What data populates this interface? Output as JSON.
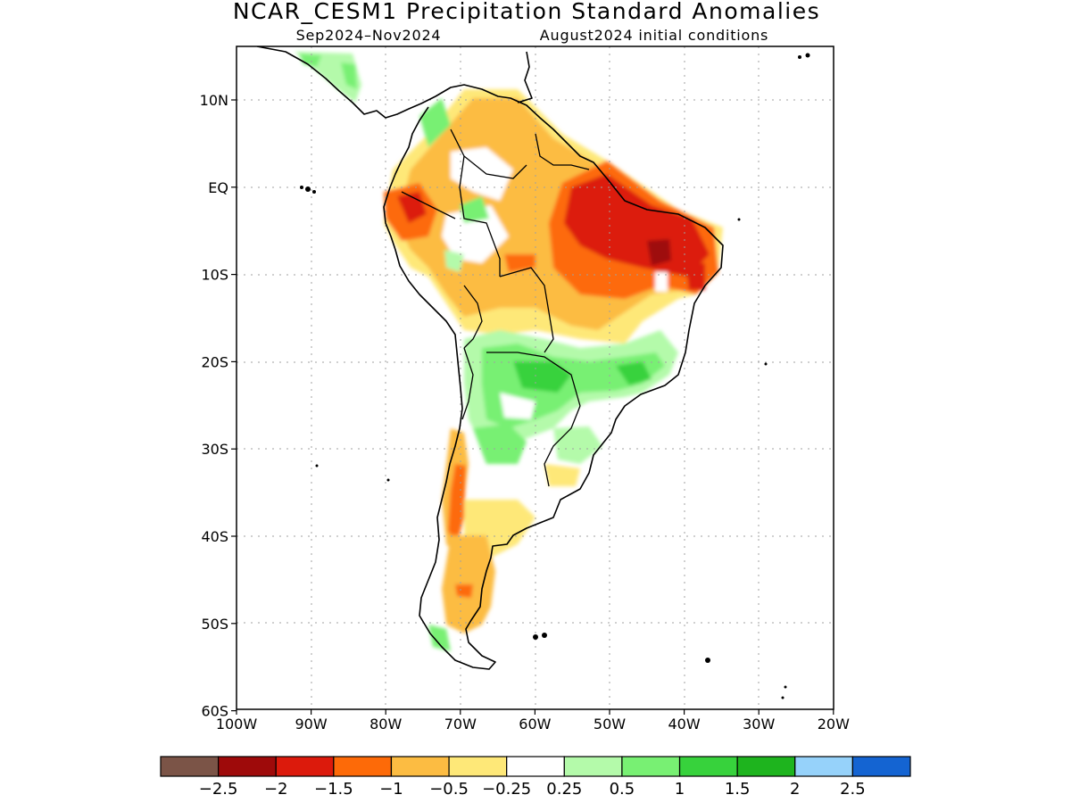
{
  "title": "NCAR_CESM1 Precipitation Standard Anomalies",
  "subtitle_left": "Sep2024–Nov2024",
  "subtitle_right": "August2024 initial conditions",
  "lat_labels": [
    "10N",
    "EQ",
    "10S",
    "20S",
    "30S",
    "40S",
    "50S",
    "60S"
  ],
  "lon_labels": [
    "100W",
    "90W",
    "80W",
    "70W",
    "60W",
    "50W",
    "40W",
    "30W",
    "20W"
  ],
  "colorbar": {
    "colors": [
      "#7b5447",
      "#9e0a0a",
      "#dc1a0c",
      "#fd6a08",
      "#fcbc42",
      "#fee878",
      "#ffffff",
      "#b4faaa",
      "#78f073",
      "#37d23c",
      "#1eb41e",
      "#96d2fa",
      "#1464d2"
    ],
    "labels": [
      "−2.5",
      "−2",
      "−1.5",
      "−1",
      "−0.5",
      "−0.25",
      "0.25",
      "0.5",
      "1",
      "1.5",
      "2",
      "2.5"
    ]
  },
  "colors": {
    "strong_dry": "#9e0a0a",
    "dry_2": "#dc1a0c",
    "dry_1_5": "#fd6a08",
    "dry_1": "#fcbc42",
    "dry_0_5": "#fee878",
    "wet_0_25": "#b4faaa",
    "wet_0_5": "#78f073",
    "wet_1": "#37d23c"
  }
}
